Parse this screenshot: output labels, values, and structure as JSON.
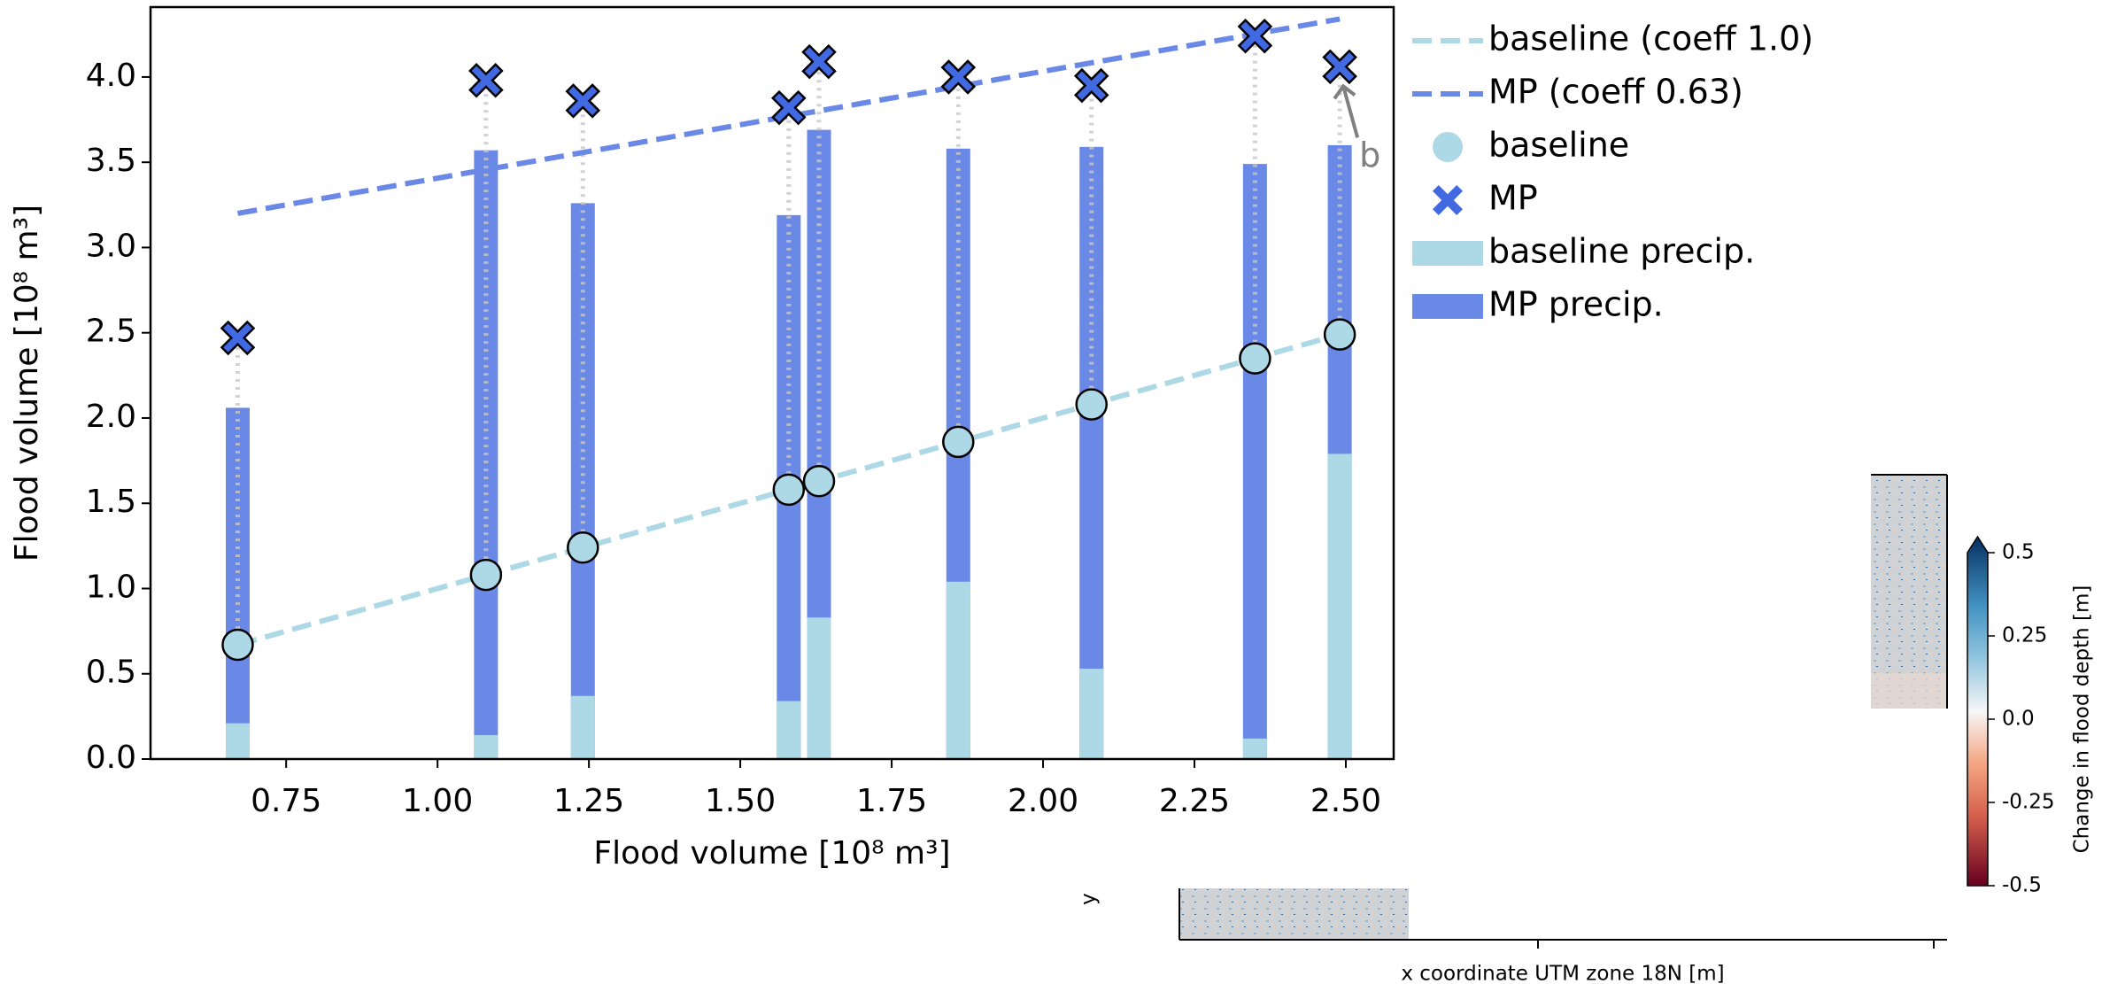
{
  "chart_data": [
    {
      "type": "combo",
      "xlabel": "Flood volume [10⁸ m³]",
      "ylabel": "Flood volume [10⁸ m³]",
      "annotation": "b",
      "x": [
        0.67,
        1.08,
        1.24,
        1.58,
        1.63,
        1.86,
        2.08,
        2.35,
        2.49
      ],
      "xlim": [
        0.526,
        2.579
      ],
      "ylim": [
        0,
        4.41
      ],
      "xticks": [
        0.75,
        {
          "value": 1.0,
          "label": "1.00"
        },
        1.25,
        {
          "value": 1.5,
          "label": "1.50"
        },
        1.75,
        {
          "value": 2.0,
          "label": "2.00"
        },
        2.25,
        {
          "value": 2.5,
          "label": "2.50"
        }
      ],
      "yticks": [
        {
          "value": 0,
          "label": "0.0"
        },
        0.5,
        {
          "value": 1,
          "label": "1.0"
        },
        1.5,
        {
          "value": 2,
          "label": "2.0"
        },
        2.5,
        {
          "value": 3,
          "label": "3.0"
        },
        3.5,
        {
          "value": 4,
          "label": "4.0"
        }
      ],
      "series": [
        {
          "name": "baseline (coeff 1.0)",
          "kind": "line",
          "color": "#add8e6",
          "x": [
            0.67,
            2.49
          ],
          "values": [
            0.67,
            2.49
          ]
        },
        {
          "name": "MP (coeff 0.63)",
          "kind": "line",
          "color": "#6a89e6",
          "x": [
            0.67,
            2.49
          ],
          "values": [
            3.2,
            4.34
          ]
        },
        {
          "name": "baseline",
          "kind": "scatter",
          "color": "#add8e6",
          "values": [
            0.67,
            1.08,
            1.24,
            1.58,
            1.63,
            1.86,
            2.08,
            2.35,
            2.49
          ]
        },
        {
          "name": "MP",
          "kind": "cross",
          "color": "#4169e1",
          "values": [
            2.47,
            3.98,
            3.86,
            3.82,
            4.09,
            4.0,
            3.95,
            4.24,
            4.06
          ]
        },
        {
          "name": "baseline precip.",
          "kind": "bar",
          "color": "#add8e6",
          "values": [
            0.21,
            0.14,
            0.37,
            0.34,
            0.83,
            1.04,
            0.53,
            0.12,
            1.79
          ]
        },
        {
          "name": "MP precip.",
          "kind": "bar",
          "color": "#6a89e6",
          "values": [
            2.06,
            3.57,
            3.26,
            3.19,
            3.69,
            3.58,
            3.59,
            3.49,
            3.6
          ]
        }
      ]
    },
    {
      "type": "colorbar",
      "label": "Change in flood depth [m]",
      "xlabel": "x coordinate UTM zone 18N [m]",
      "ylabel": "y",
      "lim": [
        -0.5,
        0.5
      ],
      "ticks": [
        0.5,
        0.25,
        {
          "value": 0,
          "label": "0.0"
        },
        -0.25,
        -0.5
      ]
    }
  ]
}
